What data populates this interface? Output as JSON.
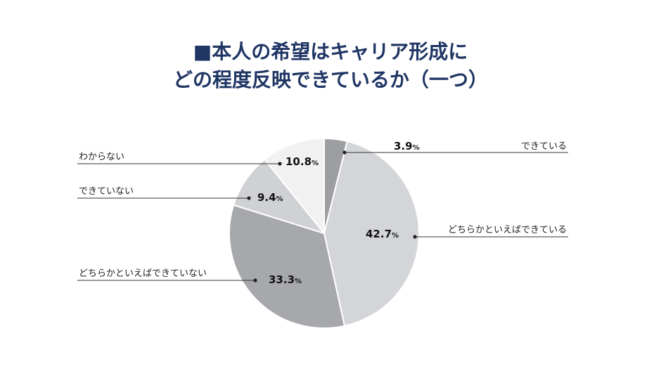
{
  "title": {
    "line1": "■本人の希望はキャリア形成に",
    "line2": "どの程度反映できているか（一つ）"
  },
  "chart_data": {
    "type": "pie",
    "title": "■本人の希望はキャリア形成に どの程度反映できているか（一つ）",
    "unit": "%",
    "slices": [
      {
        "label": "できている",
        "value": 3.9,
        "value_text": "3.9",
        "color": "#9c9ea2"
      },
      {
        "label": "どちらかといえばできている",
        "value": 42.7,
        "value_text": "42.7",
        "color": "#d3d5d8"
      },
      {
        "label": "どちらかといえばできていない",
        "value": 33.3,
        "value_text": "33.3",
        "color": "#a6a8ac"
      },
      {
        "label": "できていない",
        "value": 9.4,
        "value_text": "9.4",
        "color": "#d0d1d4"
      },
      {
        "label": "わからない",
        "value": 10.8,
        "value_text": "10.8",
        "color": "#f1f1f2"
      }
    ]
  }
}
